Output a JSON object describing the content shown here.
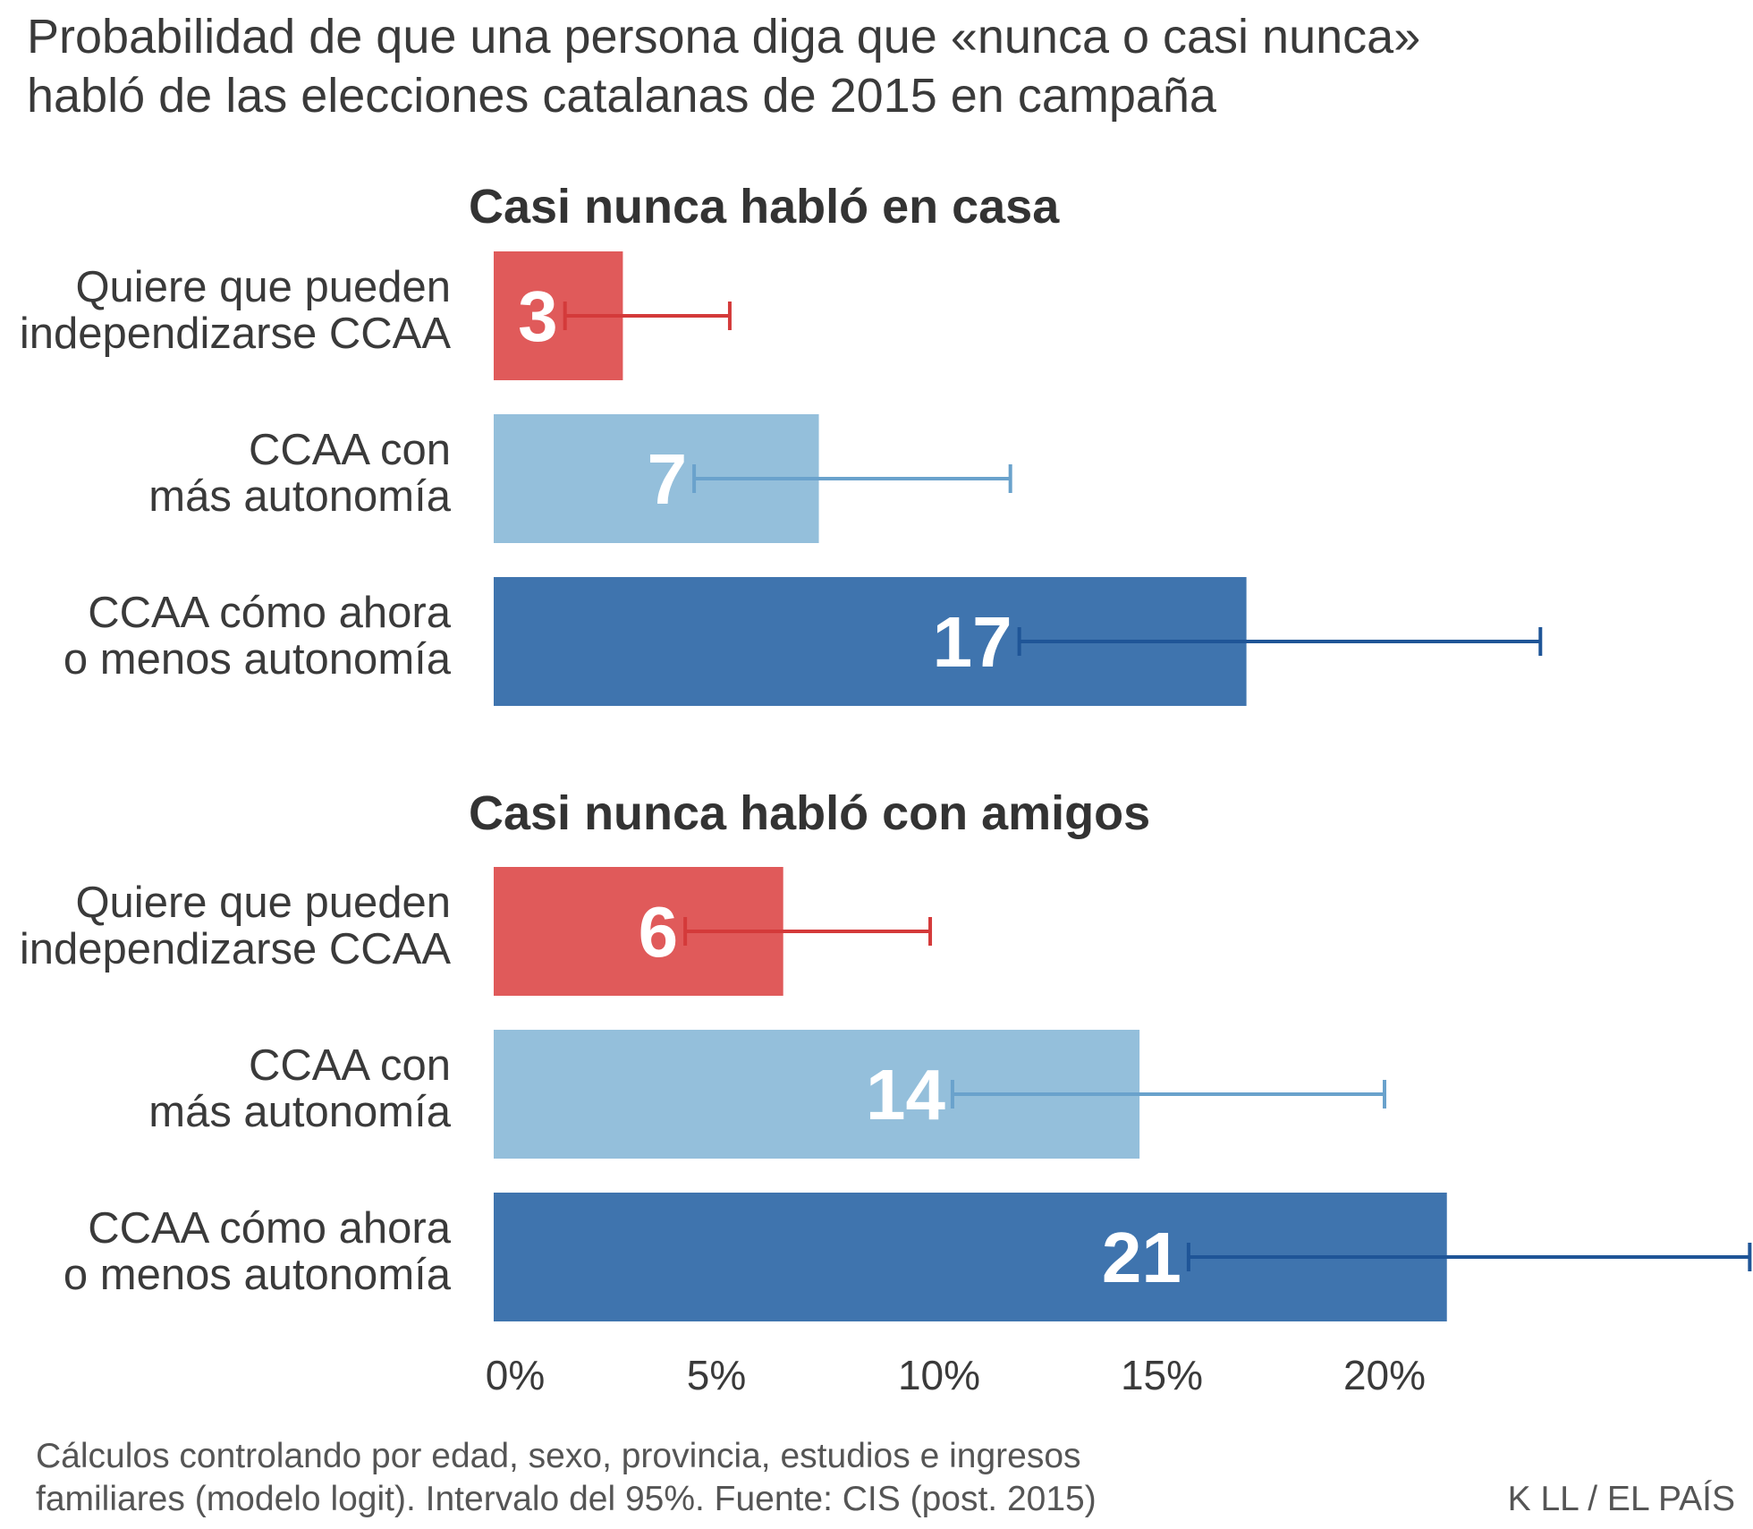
{
  "title": {
    "line1": "Probabilidad de que una persona diga que «nunca o casi nunca»",
    "line2": "habló de las elecciones catalanas de 2015 en campaña"
  },
  "colors": {
    "independence": "#e05a5a",
    "more_autonomy": "#94bfdb",
    "same_or_less": "#3f74ae",
    "err_independence": "#d43a3a",
    "err_more_autonomy": "#6aa2cc",
    "err_same_or_less": "#1f5597"
  },
  "chart_data": [
    {
      "type": "bar",
      "orientation": "horizontal",
      "title": "Casi nunca habló en casa",
      "categories": [
        [
          "Quiere que pueden",
          "independizarse CCAA"
        ],
        [
          "CCAA con",
          "más autonomía"
        ],
        [
          "CCAA cómo ahora",
          "o menos autonomía"
        ]
      ],
      "values": [
        2.9,
        7.3,
        16.9
      ],
      "labels": [
        "3",
        "7",
        "17"
      ],
      "ci_low": [
        1.6,
        4.5,
        11.8
      ],
      "ci_high": [
        5.3,
        11.6,
        23.5
      ],
      "color_keys": [
        "independence",
        "more_autonomy",
        "same_or_less"
      ],
      "xlim": [
        0,
        25
      ]
    },
    {
      "type": "bar",
      "orientation": "horizontal",
      "title": "Casi nunca habló con amigos",
      "categories": [
        [
          "Quiere que pueden",
          "independizarse CCAA"
        ],
        [
          "CCAA con",
          "más autonomía"
        ],
        [
          "CCAA cómo ahora",
          "o menos autonomía"
        ]
      ],
      "values": [
        6.5,
        14.5,
        21.4
      ],
      "labels": [
        "6",
        "14",
        "21"
      ],
      "ci_low": [
        4.3,
        10.3,
        15.6
      ],
      "ci_high": [
        9.8,
        20.0,
        28.2
      ],
      "color_keys": [
        "independence",
        "more_autonomy",
        "same_or_less"
      ],
      "xlim": [
        0,
        25
      ]
    }
  ],
  "x_axis": {
    "ticks": [
      0,
      5,
      10,
      15,
      20
    ],
    "tick_labels": [
      "0%",
      "5%",
      "10%",
      "15%",
      "20%"
    ]
  },
  "footnote": {
    "line1": "Cálculos controlando por edad, sexo, provincia, estudios e ingresos",
    "line2": "familiares (modelo logit). Intervalo del 95%. Fuente: CIS (post. 2015)"
  },
  "credit": "K LL / EL PAÍS"
}
